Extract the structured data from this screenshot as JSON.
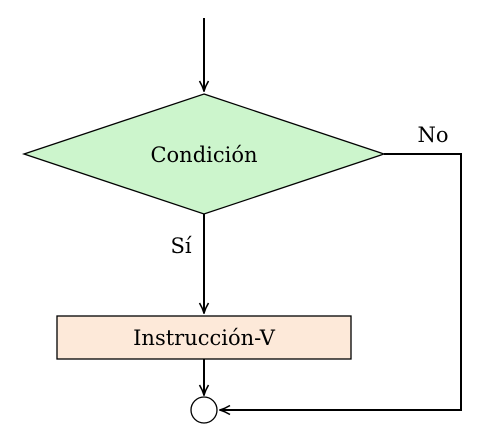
{
  "diagram": {
    "type": "flowchart",
    "nodes": {
      "condition": {
        "label": "Condición",
        "shape": "diamond",
        "fill": "#ccf5cc"
      },
      "instruction": {
        "label": "Instrucción-V",
        "shape": "rectangle",
        "fill": "#fde9d9"
      },
      "join": {
        "label": "",
        "shape": "circle",
        "fill": "#ffffff"
      }
    },
    "edges": {
      "yes_label": "Sí",
      "no_label": "No"
    },
    "colors": {
      "stroke": "#000000",
      "diamond_fill": "#ccf5cc",
      "rect_fill": "#fde9d9"
    }
  }
}
